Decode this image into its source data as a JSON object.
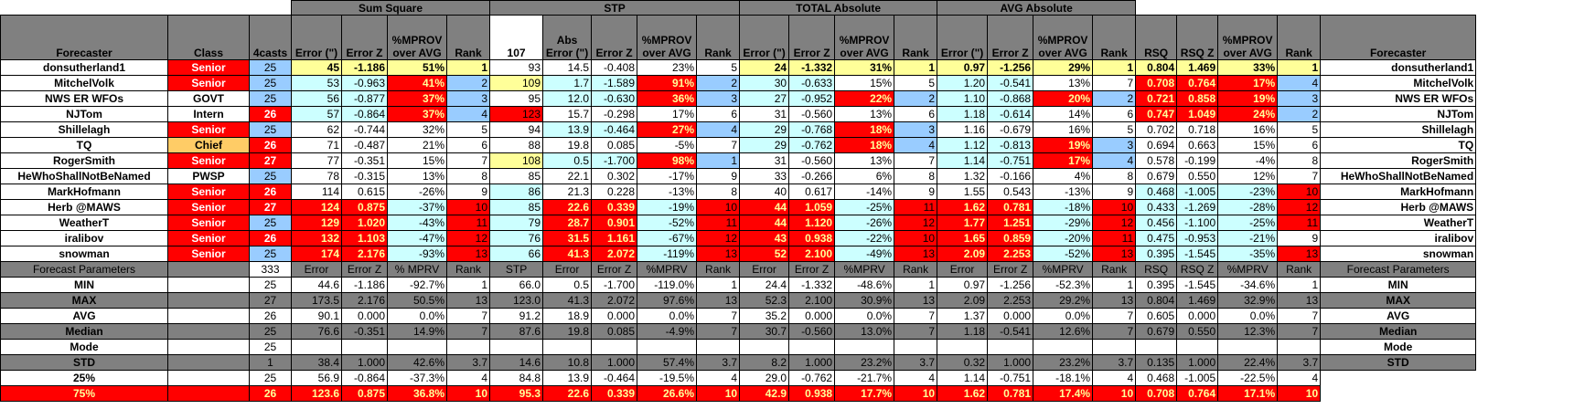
{
  "colors": {
    "header_gray": "#808080",
    "header_text": "#ffff99",
    "red": "#ff0000",
    "yellow": "#ffff99",
    "cyan": "#ccffff",
    "blue": "#99ccff",
    "orange": "#ffcc66"
  },
  "group_headers": [
    "Sum Square",
    "STP",
    "TOTAL Absolute",
    "AVG Absolute"
  ],
  "header": [
    "Forecaster",
    "Class",
    "4casts",
    "Error (\")",
    "Error Z",
    "%MPROV over AVG",
    "Rank",
    "107",
    "Abs Error (\")",
    "Error Z",
    "%MPROV over AVG",
    "Rank",
    "Error (\")",
    "Error Z",
    "%MPROV over AVG",
    "Rank",
    "Error (\")",
    "Error Z",
    "%MPROV over AVG",
    "Rank",
    "RSQ",
    "RSQ Z",
    "%MPROV over AVG",
    "Rank",
    "Forecaster"
  ],
  "rows": [
    [
      "donsutherland1",
      "Senior",
      "25",
      "45",
      "-1.186",
      "51%",
      "1",
      "93",
      "14.5",
      "-0.408",
      "23%",
      "5",
      "24",
      "-1.332",
      "31%",
      "1",
      "0.97",
      "-1.256",
      "29%",
      "1",
      "0.804",
      "1.469",
      "33%",
      "1",
      "donsutherland1"
    ],
    [
      "MitchelVolk",
      "Senior",
      "25",
      "53",
      "-0.963",
      "41%",
      "2",
      "109",
      "1.7",
      "-1.589",
      "91%",
      "2",
      "30",
      "-0.633",
      "15%",
      "5",
      "1.20",
      "-0.541",
      "13%",
      "7",
      "0.708",
      "0.764",
      "17%",
      "4",
      "MitchelVolk"
    ],
    [
      "NWS ER WFOs",
      "GOVT",
      "25",
      "56",
      "-0.877",
      "37%",
      "3",
      "95",
      "12.0",
      "-0.630",
      "36%",
      "3",
      "27",
      "-0.952",
      "22%",
      "2",
      "1.10",
      "-0.868",
      "20%",
      "2",
      "0.721",
      "0.858",
      "19%",
      "3",
      "NWS ER WFOs"
    ],
    [
      "NJTom",
      "Intern",
      "26",
      "57",
      "-0.864",
      "37%",
      "4",
      "123",
      "15.7",
      "-0.298",
      "17%",
      "6",
      "31",
      "-0.560",
      "13%",
      "6",
      "1.18",
      "-0.614",
      "14%",
      "6",
      "0.747",
      "1.049",
      "24%",
      "2",
      "NJTom"
    ],
    [
      "Shillelagh",
      "Senior",
      "25",
      "62",
      "-0.744",
      "32%",
      "5",
      "94",
      "13.9",
      "-0.464",
      "27%",
      "4",
      "29",
      "-0.768",
      "18%",
      "3",
      "1.16",
      "-0.679",
      "16%",
      "5",
      "0.702",
      "0.718",
      "16%",
      "5",
      "Shillelagh"
    ],
    [
      "TQ",
      "Chief",
      "26",
      "71",
      "-0.487",
      "21%",
      "6",
      "88",
      "19.8",
      "0.085",
      "-5%",
      "7",
      "29",
      "-0.762",
      "18%",
      "4",
      "1.12",
      "-0.813",
      "19%",
      "3",
      "0.694",
      "0.663",
      "15%",
      "6",
      "TQ"
    ],
    [
      "RogerSmith",
      "Senior",
      "27",
      "77",
      "-0.351",
      "15%",
      "7",
      "108",
      "0.5",
      "-1.700",
      "98%",
      "1",
      "31",
      "-0.560",
      "13%",
      "7",
      "1.14",
      "-0.751",
      "17%",
      "4",
      "0.578",
      "-0.199",
      "-4%",
      "8",
      "RogerSmith"
    ],
    [
      "HeWhoShallNotBeNamed",
      "PWSP",
      "25",
      "78",
      "-0.315",
      "13%",
      "8",
      "85",
      "22.1",
      "0.302",
      "-17%",
      "9",
      "33",
      "-0.266",
      "6%",
      "8",
      "1.32",
      "-0.166",
      "4%",
      "8",
      "0.679",
      "0.550",
      "12%",
      "7",
      "HeWhoShallNotBeNamed"
    ],
    [
      "MarkHofmann",
      "Senior",
      "26",
      "114",
      "0.615",
      "-26%",
      "9",
      "86",
      "21.3",
      "0.228",
      "-13%",
      "8",
      "40",
      "0.617",
      "-14%",
      "9",
      "1.55",
      "0.543",
      "-13%",
      "9",
      "0.468",
      "-1.005",
      "-23%",
      "10",
      "MarkHofmann"
    ],
    [
      "Herb @MAWS",
      "Senior",
      "27",
      "124",
      "0.875",
      "-37%",
      "10",
      "85",
      "22.6",
      "0.339",
      "-19%",
      "10",
      "44",
      "1.059",
      "-25%",
      "11",
      "1.62",
      "0.781",
      "-18%",
      "10",
      "0.433",
      "-1.269",
      "-28%",
      "12",
      "Herb @MAWS"
    ],
    [
      "WeatherT",
      "Senior",
      "25",
      "129",
      "1.020",
      "-43%",
      "11",
      "79",
      "28.7",
      "0.901",
      "-52%",
      "11",
      "44",
      "1.120",
      "-26%",
      "12",
      "1.77",
      "1.251",
      "-29%",
      "12",
      "0.456",
      "-1.100",
      "-25%",
      "11",
      "WeatherT"
    ],
    [
      "iralibov",
      "Senior",
      "26",
      "132",
      "1.103",
      "-47%",
      "12",
      "76",
      "31.5",
      "1.161",
      "-67%",
      "12",
      "43",
      "0.938",
      "-22%",
      "10",
      "1.65",
      "0.859",
      "-20%",
      "11",
      "0.475",
      "-0.953",
      "-21%",
      "9",
      "iralibov"
    ],
    [
      "snowman",
      "Senior",
      "25",
      "174",
      "2.176",
      "-93%",
      "13",
      "66",
      "41.3",
      "2.072",
      "-119%",
      "13",
      "52",
      "2.100",
      "-49%",
      "13",
      "2.09",
      "2.253",
      "-52%",
      "13",
      "0.395",
      "-1.545",
      "-35%",
      "13",
      "snowman"
    ]
  ],
  "param_header": [
    "Forecast Parameters",
    "",
    "333",
    "Error",
    "Error Z",
    "% MPRV",
    "Rank",
    "STP",
    "Error",
    "Error Z",
    "%MPRV",
    "Rank",
    "Error",
    "Error Z",
    "%MPRV",
    "Rank",
    "Error",
    "Error Z",
    "%MPRV",
    "Rank",
    "RSQ",
    "RSQ Z",
    "%MPRV",
    "Rank",
    "Forecast Parameters"
  ],
  "params": [
    [
      "MIN",
      "",
      "25",
      "44.6",
      "-1.186",
      "-92.7%",
      "1",
      "66.0",
      "0.5",
      "-1.700",
      "-119.0%",
      "1",
      "24.4",
      "-1.332",
      "-48.6%",
      "1",
      "0.97",
      "-1.256",
      "-52.3%",
      "1",
      "0.395",
      "-1.545",
      "-34.6%",
      "1",
      "MIN"
    ],
    [
      "MAX",
      "",
      "27",
      "173.5",
      "2.176",
      "50.5%",
      "13",
      "123.0",
      "41.3",
      "2.072",
      "97.6%",
      "13",
      "52.3",
      "2.100",
      "30.9%",
      "13",
      "2.09",
      "2.253",
      "29.2%",
      "13",
      "0.804",
      "1.469",
      "32.9%",
      "13",
      "MAX"
    ],
    [
      "AVG",
      "",
      "26",
      "90.1",
      "0.000",
      "0.0%",
      "7",
      "91.2",
      "18.9",
      "0.000",
      "0.0%",
      "7",
      "35.2",
      "0.000",
      "0.0%",
      "7",
      "1.37",
      "0.000",
      "0.0%",
      "7",
      "0.605",
      "0.000",
      "0.0%",
      "7",
      "AVG"
    ],
    [
      "Median",
      "",
      "25",
      "76.6",
      "-0.351",
      "14.9%",
      "7",
      "87.6",
      "19.8",
      "0.085",
      "-4.9%",
      "7",
      "30.7",
      "-0.560",
      "13.0%",
      "7",
      "1.18",
      "-0.541",
      "12.6%",
      "7",
      "0.679",
      "0.550",
      "12.3%",
      "7",
      "Median"
    ],
    [
      "Mode",
      "",
      "25",
      "",
      "",
      "",
      "",
      "",
      "",
      "",
      "",
      "",
      "",
      "",
      "",
      "",
      "",
      "",
      "",
      "",
      "",
      "",
      "",
      "",
      "Mode"
    ],
    [
      "STD",
      "",
      "1",
      "38.4",
      "1.000",
      "42.6%",
      "3.7",
      "14.6",
      "10.8",
      "1.000",
      "57.4%",
      "3.7",
      "8.2",
      "1.000",
      "23.2%",
      "3.7",
      "0.32",
      "1.000",
      "23.2%",
      "3.7",
      "0.135",
      "1.000",
      "22.4%",
      "3.7",
      "STD"
    ],
    [
      "25%",
      "",
      "25",
      "56.9",
      "-0.864",
      "-37.3%",
      "4",
      "84.8",
      "13.9",
      "-0.464",
      "-19.5%",
      "4",
      "29.0",
      "-0.762",
      "-21.7%",
      "4",
      "1.14",
      "-0.751",
      "-18.1%",
      "4",
      "0.468",
      "-1.005",
      "-22.5%",
      "4",
      ""
    ],
    [
      "75%",
      "",
      "26",
      "123.6",
      "0.875",
      "36.8%",
      "10",
      "95.3",
      "22.6",
      "0.339",
      "26.6%",
      "10",
      "42.9",
      "0.938",
      "17.7%",
      "10",
      "1.62",
      "0.781",
      "17.4%",
      "10",
      "0.708",
      "0.764",
      "17.1%",
      "10",
      ""
    ]
  ]
}
